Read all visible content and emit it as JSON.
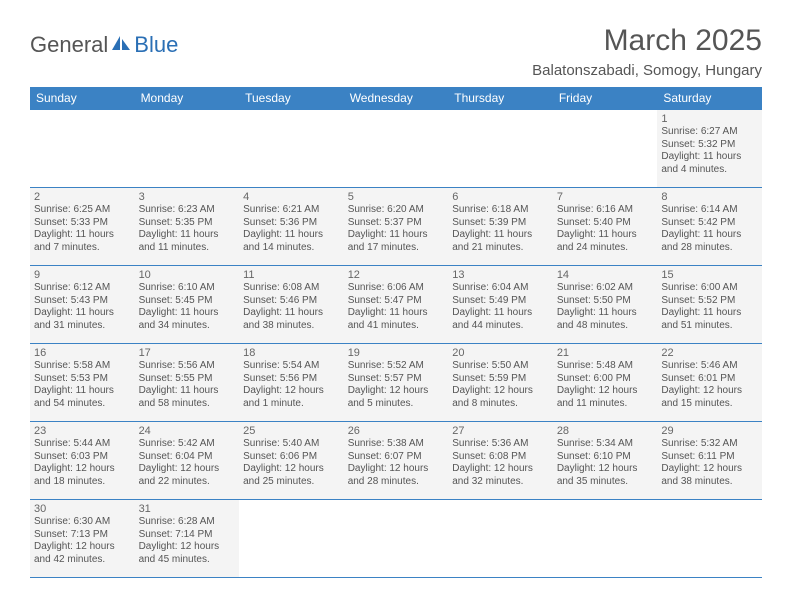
{
  "logo": {
    "text1": "General",
    "text2": "Blue"
  },
  "title": "March 2025",
  "location": "Balatonszabadi, Somogy, Hungary",
  "colors": {
    "header_bg": "#3b82c4",
    "header_text": "#ffffff",
    "cell_bg": "#f4f4f4",
    "border": "#3b82c4",
    "text": "#555555",
    "logo_blue": "#2a6fb5"
  },
  "weekdays": [
    "Sunday",
    "Monday",
    "Tuesday",
    "Wednesday",
    "Thursday",
    "Friday",
    "Saturday"
  ],
  "weeks": [
    [
      null,
      null,
      null,
      null,
      null,
      null,
      {
        "n": "1",
        "sr": "Sunrise: 6:27 AM",
        "ss": "Sunset: 5:32 PM",
        "d1": "Daylight: 11 hours",
        "d2": "and 4 minutes."
      }
    ],
    [
      {
        "n": "2",
        "sr": "Sunrise: 6:25 AM",
        "ss": "Sunset: 5:33 PM",
        "d1": "Daylight: 11 hours",
        "d2": "and 7 minutes."
      },
      {
        "n": "3",
        "sr": "Sunrise: 6:23 AM",
        "ss": "Sunset: 5:35 PM",
        "d1": "Daylight: 11 hours",
        "d2": "and 11 minutes."
      },
      {
        "n": "4",
        "sr": "Sunrise: 6:21 AM",
        "ss": "Sunset: 5:36 PM",
        "d1": "Daylight: 11 hours",
        "d2": "and 14 minutes."
      },
      {
        "n": "5",
        "sr": "Sunrise: 6:20 AM",
        "ss": "Sunset: 5:37 PM",
        "d1": "Daylight: 11 hours",
        "d2": "and 17 minutes."
      },
      {
        "n": "6",
        "sr": "Sunrise: 6:18 AM",
        "ss": "Sunset: 5:39 PM",
        "d1": "Daylight: 11 hours",
        "d2": "and 21 minutes."
      },
      {
        "n": "7",
        "sr": "Sunrise: 6:16 AM",
        "ss": "Sunset: 5:40 PM",
        "d1": "Daylight: 11 hours",
        "d2": "and 24 minutes."
      },
      {
        "n": "8",
        "sr": "Sunrise: 6:14 AM",
        "ss": "Sunset: 5:42 PM",
        "d1": "Daylight: 11 hours",
        "d2": "and 28 minutes."
      }
    ],
    [
      {
        "n": "9",
        "sr": "Sunrise: 6:12 AM",
        "ss": "Sunset: 5:43 PM",
        "d1": "Daylight: 11 hours",
        "d2": "and 31 minutes."
      },
      {
        "n": "10",
        "sr": "Sunrise: 6:10 AM",
        "ss": "Sunset: 5:45 PM",
        "d1": "Daylight: 11 hours",
        "d2": "and 34 minutes."
      },
      {
        "n": "11",
        "sr": "Sunrise: 6:08 AM",
        "ss": "Sunset: 5:46 PM",
        "d1": "Daylight: 11 hours",
        "d2": "and 38 minutes."
      },
      {
        "n": "12",
        "sr": "Sunrise: 6:06 AM",
        "ss": "Sunset: 5:47 PM",
        "d1": "Daylight: 11 hours",
        "d2": "and 41 minutes."
      },
      {
        "n": "13",
        "sr": "Sunrise: 6:04 AM",
        "ss": "Sunset: 5:49 PM",
        "d1": "Daylight: 11 hours",
        "d2": "and 44 minutes."
      },
      {
        "n": "14",
        "sr": "Sunrise: 6:02 AM",
        "ss": "Sunset: 5:50 PM",
        "d1": "Daylight: 11 hours",
        "d2": "and 48 minutes."
      },
      {
        "n": "15",
        "sr": "Sunrise: 6:00 AM",
        "ss": "Sunset: 5:52 PM",
        "d1": "Daylight: 11 hours",
        "d2": "and 51 minutes."
      }
    ],
    [
      {
        "n": "16",
        "sr": "Sunrise: 5:58 AM",
        "ss": "Sunset: 5:53 PM",
        "d1": "Daylight: 11 hours",
        "d2": "and 54 minutes."
      },
      {
        "n": "17",
        "sr": "Sunrise: 5:56 AM",
        "ss": "Sunset: 5:55 PM",
        "d1": "Daylight: 11 hours",
        "d2": "and 58 minutes."
      },
      {
        "n": "18",
        "sr": "Sunrise: 5:54 AM",
        "ss": "Sunset: 5:56 PM",
        "d1": "Daylight: 12 hours",
        "d2": "and 1 minute."
      },
      {
        "n": "19",
        "sr": "Sunrise: 5:52 AM",
        "ss": "Sunset: 5:57 PM",
        "d1": "Daylight: 12 hours",
        "d2": "and 5 minutes."
      },
      {
        "n": "20",
        "sr": "Sunrise: 5:50 AM",
        "ss": "Sunset: 5:59 PM",
        "d1": "Daylight: 12 hours",
        "d2": "and 8 minutes."
      },
      {
        "n": "21",
        "sr": "Sunrise: 5:48 AM",
        "ss": "Sunset: 6:00 PM",
        "d1": "Daylight: 12 hours",
        "d2": "and 11 minutes."
      },
      {
        "n": "22",
        "sr": "Sunrise: 5:46 AM",
        "ss": "Sunset: 6:01 PM",
        "d1": "Daylight: 12 hours",
        "d2": "and 15 minutes."
      }
    ],
    [
      {
        "n": "23",
        "sr": "Sunrise: 5:44 AM",
        "ss": "Sunset: 6:03 PM",
        "d1": "Daylight: 12 hours",
        "d2": "and 18 minutes."
      },
      {
        "n": "24",
        "sr": "Sunrise: 5:42 AM",
        "ss": "Sunset: 6:04 PM",
        "d1": "Daylight: 12 hours",
        "d2": "and 22 minutes."
      },
      {
        "n": "25",
        "sr": "Sunrise: 5:40 AM",
        "ss": "Sunset: 6:06 PM",
        "d1": "Daylight: 12 hours",
        "d2": "and 25 minutes."
      },
      {
        "n": "26",
        "sr": "Sunrise: 5:38 AM",
        "ss": "Sunset: 6:07 PM",
        "d1": "Daylight: 12 hours",
        "d2": "and 28 minutes."
      },
      {
        "n": "27",
        "sr": "Sunrise: 5:36 AM",
        "ss": "Sunset: 6:08 PM",
        "d1": "Daylight: 12 hours",
        "d2": "and 32 minutes."
      },
      {
        "n": "28",
        "sr": "Sunrise: 5:34 AM",
        "ss": "Sunset: 6:10 PM",
        "d1": "Daylight: 12 hours",
        "d2": "and 35 minutes."
      },
      {
        "n": "29",
        "sr": "Sunrise: 5:32 AM",
        "ss": "Sunset: 6:11 PM",
        "d1": "Daylight: 12 hours",
        "d2": "and 38 minutes."
      }
    ],
    [
      {
        "n": "30",
        "sr": "Sunrise: 6:30 AM",
        "ss": "Sunset: 7:13 PM",
        "d1": "Daylight: 12 hours",
        "d2": "and 42 minutes."
      },
      {
        "n": "31",
        "sr": "Sunrise: 6:28 AM",
        "ss": "Sunset: 7:14 PM",
        "d1": "Daylight: 12 hours",
        "d2": "and 45 minutes."
      },
      null,
      null,
      null,
      null,
      null
    ]
  ]
}
